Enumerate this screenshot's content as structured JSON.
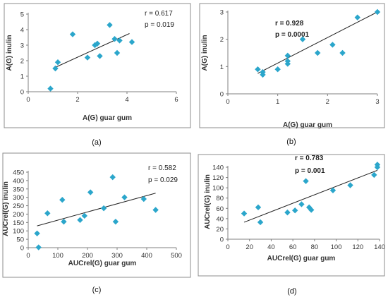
{
  "panels": [
    {
      "caption": "(a)"
    },
    {
      "caption": "(b)"
    },
    {
      "caption": "(c)"
    },
    {
      "caption": "(d)"
    }
  ],
  "chart_data": [
    {
      "type": "scatter",
      "title": "",
      "xlabel": "A(G) guar gum",
      "ylabel": "A(G) inulin",
      "xlim": [
        0,
        6
      ],
      "ylim": [
        0,
        5
      ],
      "xticks": [
        0,
        2,
        4,
        6
      ],
      "yticks": [
        0,
        1,
        2,
        3,
        4,
        5
      ],
      "annotations": [
        "r = 0.617",
        "p = 0.019"
      ],
      "marker_color": "#2BA6CB",
      "points": [
        [
          0.9,
          0.2
        ],
        [
          1.1,
          1.5
        ],
        [
          1.2,
          1.9
        ],
        [
          1.8,
          3.7
        ],
        [
          2.4,
          2.2
        ],
        [
          2.7,
          3.0
        ],
        [
          2.8,
          3.1
        ],
        [
          2.9,
          2.3
        ],
        [
          3.3,
          4.3
        ],
        [
          3.5,
          3.4
        ],
        [
          3.7,
          3.3
        ],
        [
          3.6,
          2.5
        ],
        [
          4.2,
          3.2
        ]
      ],
      "trendline": [
        [
          1.0,
          1.5
        ],
        [
          4.1,
          3.75
        ]
      ]
    },
    {
      "type": "scatter",
      "title": "",
      "xlabel": "A(G) guar gum",
      "ylabel": "A(G) inulin",
      "xlim": [
        0,
        3
      ],
      "ylim": [
        0,
        3
      ],
      "xticks": [
        0,
        1,
        2,
        3
      ],
      "yticks": [
        0,
        1,
        2,
        3
      ],
      "annotations": [
        "r = 0.928",
        "p = 0.0001"
      ],
      "marker_color": "#2BA6CB",
      "points": [
        [
          0.6,
          0.9
        ],
        [
          0.7,
          0.7
        ],
        [
          0.7,
          0.8
        ],
        [
          1.0,
          0.9
        ],
        [
          1.2,
          1.1
        ],
        [
          1.2,
          1.2
        ],
        [
          1.2,
          1.4
        ],
        [
          1.5,
          2.0
        ],
        [
          1.8,
          1.5
        ],
        [
          2.1,
          1.8
        ],
        [
          2.3,
          1.5
        ],
        [
          2.6,
          2.8
        ],
        [
          3.0,
          3.0
        ]
      ],
      "trendline": [
        [
          0.6,
          0.75
        ],
        [
          3.0,
          3.0
        ]
      ]
    },
    {
      "type": "scatter",
      "title": "",
      "xlabel": "AUCrel(G) guar gum",
      "ylabel": "AUCrel(G) inulin",
      "xlim": [
        0,
        500
      ],
      "ylim": [
        0,
        450
      ],
      "xticks": [
        0,
        100,
        200,
        300,
        400,
        500
      ],
      "yticks": [
        0,
        50,
        100,
        150,
        200,
        250,
        300,
        350,
        400,
        450
      ],
      "annotations": [
        "r = 0.582",
        "p = 0.029"
      ],
      "marker_color": "#2BA6CB",
      "points": [
        [
          30,
          85
        ],
        [
          35,
          2
        ],
        [
          65,
          205
        ],
        [
          115,
          285
        ],
        [
          120,
          155
        ],
        [
          175,
          165
        ],
        [
          190,
          190
        ],
        [
          210,
          330
        ],
        [
          255,
          235
        ],
        [
          285,
          420
        ],
        [
          295,
          155
        ],
        [
          325,
          300
        ],
        [
          390,
          290
        ],
        [
          430,
          225
        ]
      ],
      "trendline": [
        [
          30,
          130
        ],
        [
          430,
          325
        ]
      ]
    },
    {
      "type": "scatter",
      "title": "",
      "xlabel": "AUCrel(G) guar gum",
      "ylabel": "AUCrel(G)  inulin",
      "xlim": [
        0,
        140
      ],
      "ylim": [
        0,
        140
      ],
      "xticks": [
        0,
        20,
        40,
        60,
        80,
        100,
        120,
        140
      ],
      "yticks": [
        0,
        20,
        40,
        60,
        80,
        100,
        120,
        140
      ],
      "annotations": [
        "r = 0.783",
        "p = 0.001"
      ],
      "marker_color": "#2BA6CB",
      "points": [
        [
          15,
          50
        ],
        [
          28,
          62
        ],
        [
          30,
          33
        ],
        [
          55,
          52
        ],
        [
          62,
          56
        ],
        [
          68,
          68
        ],
        [
          72,
          113
        ],
        [
          75,
          62
        ],
        [
          77,
          57
        ],
        [
          97,
          95
        ],
        [
          113,
          105
        ],
        [
          135,
          125
        ],
        [
          138,
          140
        ],
        [
          138,
          145
        ]
      ],
      "trendline": [
        [
          15,
          33
        ],
        [
          138,
          134
        ]
      ]
    }
  ]
}
